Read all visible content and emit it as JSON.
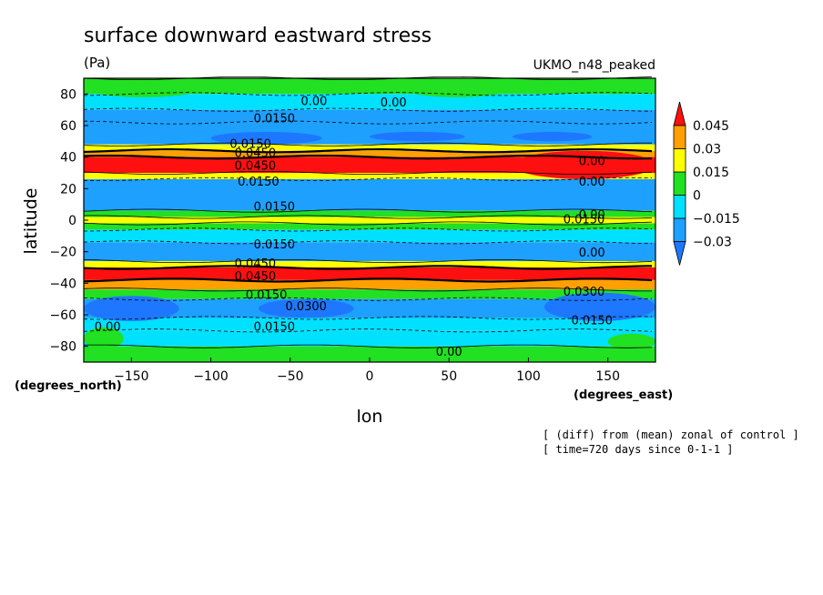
{
  "chart_data": {
    "type": "heatmap",
    "title": "surface downward eastward stress",
    "units": "(Pa)",
    "model_label": "UKMO_n48_peaked",
    "xlabel": "lon",
    "ylabel": "latitude",
    "x_units": "(degrees_east)",
    "y_units": "(degrees_north)",
    "xlim": [
      -180,
      180
    ],
    "ylim": [
      -90,
      90
    ],
    "x_ticks": [
      -150,
      -100,
      -50,
      0,
      50,
      100,
      150
    ],
    "y_ticks": [
      -80,
      -60,
      -40,
      -20,
      0,
      20,
      40,
      60,
      80
    ],
    "x_tick_labels": [
      "−150",
      "−100",
      "−50",
      "0",
      "50",
      "100",
      "150"
    ],
    "y_tick_labels": [
      "−80",
      "−60",
      "−40",
      "−20",
      "0",
      "20",
      "40",
      "60",
      "80"
    ],
    "colorbar": {
      "levels": [
        -0.03,
        -0.015,
        0,
        0.015,
        0.03,
        0.045
      ],
      "labels": [
        "−0.03",
        "−0.015",
        "0",
        "0.015",
        "0.03",
        "0.045"
      ],
      "colors": [
        "#1e78ff",
        "#1ea0ff",
        "#00e0ff",
        "#22e022",
        "#ffff00",
        "#ffa000",
        "#ff1010"
      ]
    },
    "zonal_bands": [
      {
        "lat_min": 80,
        "lat_max": 90,
        "value": 0.008
      },
      {
        "lat_min": 70,
        "lat_max": 80,
        "value": -0.008
      },
      {
        "lat_min": 62,
        "lat_max": 70,
        "value": -0.02
      },
      {
        "lat_min": 48,
        "lat_max": 62,
        "value": -0.022
      },
      {
        "lat_min": 44,
        "lat_max": 48,
        "value": 0.02
      },
      {
        "lat_min": 40,
        "lat_max": 44,
        "value": 0.035
      },
      {
        "lat_min": 30,
        "lat_max": 40,
        "value": 0.05
      },
      {
        "lat_min": 26,
        "lat_max": 30,
        "value": 0.02
      },
      {
        "lat_min": 6,
        "lat_max": 26,
        "value": -0.02
      },
      {
        "lat_min": 2,
        "lat_max": 6,
        "value": 0.005
      },
      {
        "lat_min": -2,
        "lat_max": 2,
        "value": 0.02
      },
      {
        "lat_min": -6,
        "lat_max": -2,
        "value": 0.005
      },
      {
        "lat_min": -14,
        "lat_max": -6,
        "value": -0.01
      },
      {
        "lat_min": -26,
        "lat_max": -14,
        "value": -0.02
      },
      {
        "lat_min": -30,
        "lat_max": -26,
        "value": 0.02
      },
      {
        "lat_min": -38,
        "lat_max": -30,
        "value": 0.05
      },
      {
        "lat_min": -44,
        "lat_max": -38,
        "value": 0.035
      },
      {
        "lat_min": -50,
        "lat_max": -44,
        "value": 0.01
      },
      {
        "lat_min": -62,
        "lat_max": -50,
        "value": -0.02
      },
      {
        "lat_min": -70,
        "lat_max": -62,
        "value": -0.01
      },
      {
        "lat_min": -80,
        "lat_max": -70,
        "value": -0.005
      },
      {
        "lat_min": -90,
        "lat_max": -80,
        "value": 0.005
      }
    ],
    "regional_features": [
      {
        "lon_min": -180,
        "lon_max": -105,
        "lat_min": 78,
        "lat_max": 90,
        "value": 0.01
      },
      {
        "lon_min": 20,
        "lon_max": 90,
        "lat_min": 78,
        "lat_max": 90,
        "value": 0.01
      },
      {
        "lon_min": 130,
        "lon_max": 180,
        "lat_min": 80,
        "lat_max": 90,
        "value": 0.01
      },
      {
        "lon_min": -100,
        "lon_max": -30,
        "lat_min": 48,
        "lat_max": 56,
        "value": -0.035
      },
      {
        "lon_min": 0,
        "lon_max": 60,
        "lat_min": 50,
        "lat_max": 56,
        "value": -0.035
      },
      {
        "lon_min": 90,
        "lon_max": 140,
        "lat_min": 50,
        "lat_max": 56,
        "value": -0.035
      },
      {
        "lon_min": 90,
        "lon_max": 180,
        "lat_min": 26,
        "lat_max": 44,
        "value": 0.05
      },
      {
        "lon_min": -180,
        "lon_max": -120,
        "lat_min": -64,
        "lat_max": -48,
        "value": -0.035
      },
      {
        "lon_min": -70,
        "lon_max": -10,
        "lat_min": -62,
        "lat_max": -50,
        "value": -0.04
      },
      {
        "lon_min": 110,
        "lon_max": 180,
        "lat_min": -64,
        "lat_max": -46,
        "value": -0.035
      },
      {
        "lon_min": -180,
        "lon_max": -155,
        "lat_min": -82,
        "lat_max": -68,
        "value": 0.01
      },
      {
        "lon_min": 150,
        "lon_max": 180,
        "lat_min": -82,
        "lat_max": -72,
        "value": 0.01
      }
    ],
    "contour_labels": [
      {
        "lon": -35,
        "lat": 73,
        "text": "0.00"
      },
      {
        "lon": 15,
        "lat": 72,
        "text": "0.00"
      },
      {
        "lon": -60,
        "lat": 62,
        "text": "0.0150"
      },
      {
        "lon": -75,
        "lat": 46,
        "text": "0.0150"
      },
      {
        "lon": -72,
        "lat": 40,
        "text": "0.0450"
      },
      {
        "lon": -72,
        "lat": 32,
        "text": "0.0450"
      },
      {
        "lon": -70,
        "lat": 22,
        "text": "0.0150"
      },
      {
        "lon": -60,
        "lat": 6,
        "text": "0.0150"
      },
      {
        "lon": -60,
        "lat": -18,
        "text": "0.0150"
      },
      {
        "lon": -72,
        "lat": -30,
        "text": "0.0450"
      },
      {
        "lon": -72,
        "lat": -38,
        "text": "0.0450"
      },
      {
        "lon": -65,
        "lat": -50,
        "text": "0.0150"
      },
      {
        "lon": -40,
        "lat": -57,
        "text": "0.0300"
      },
      {
        "lon": -60,
        "lat": -70,
        "text": "0.0150"
      },
      {
        "lon": -165,
        "lat": -70,
        "text": "0.00"
      },
      {
        "lon": 50,
        "lat": -86,
        "text": "0.00"
      },
      {
        "lon": 140,
        "lat": 35,
        "text": "0.00"
      },
      {
        "lon": 140,
        "lat": 22,
        "text": "0.00"
      },
      {
        "lon": 140,
        "lat": 1,
        "text": "0.00"
      },
      {
        "lon": 135,
        "lat": -2,
        "text": "0.0150"
      },
      {
        "lon": 140,
        "lat": -23,
        "text": "0.00"
      },
      {
        "lon": 135,
        "lat": -48,
        "text": "0.0300"
      },
      {
        "lon": 140,
        "lat": -66,
        "text": "0.0150"
      }
    ]
  },
  "annotations": {
    "line1": "[ (diff) from (mean) zonal of control ]",
    "line2": "[ time=720 days since 0-1-1 ]"
  }
}
